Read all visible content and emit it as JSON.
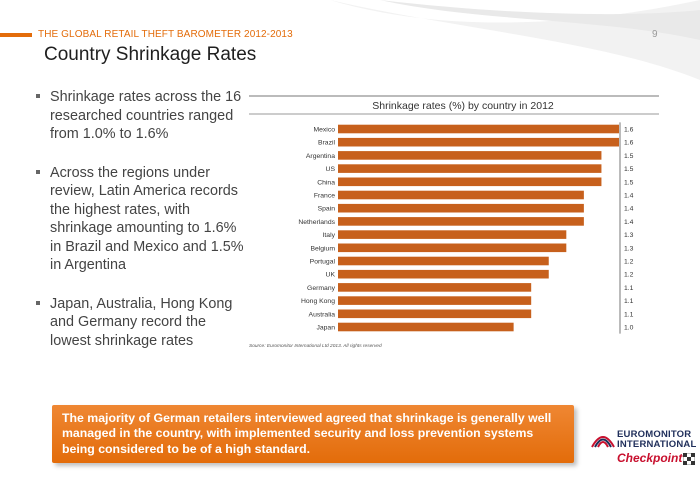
{
  "header": {
    "title": "THE GLOBAL RETAIL THEFT BAROMETER 2012-2013",
    "page_number": "9",
    "accent_color": "#e36c0a"
  },
  "slide": {
    "title": "Country Shrinkage Rates",
    "bullets": [
      "Shrinkage rates across the 16 researched countries ranged from 1.0% to 1.6%",
      "Across the regions under review, Latin America records the highest rates, with shrinkage amounting to 1.6% in Brazil and Mexico and 1.5% in Argentina",
      "Japan, Australia, Hong Kong and Germany record the lowest shrinkage rates"
    ],
    "callout": "The majority of German retailers interviewed agreed that shrinkage is generally well managed in the country, with implemented security and loss prevention systems being considered to be of a high standard."
  },
  "logos": {
    "euromonitor_line1": "EUROMONITOR",
    "euromonitor_line2": "INTERNATIONAL",
    "checkpoint": "Checkpoint"
  },
  "chart_data": {
    "type": "bar",
    "orientation": "horizontal",
    "title": "Shrinkage rates (%) by country in 2012",
    "source": "Source: Euromonitor International Ltd 2013. All rights reserved",
    "categories": [
      "Mexico",
      "Brazil",
      "Argentina",
      "US",
      "China",
      "France",
      "Spain",
      "Netherlands",
      "Italy",
      "Belgium",
      "Portugal",
      "UK",
      "Germany",
      "Hong Kong",
      "Australia",
      "Japan"
    ],
    "values": [
      1.6,
      1.6,
      1.5,
      1.5,
      1.5,
      1.4,
      1.4,
      1.4,
      1.3,
      1.3,
      1.2,
      1.2,
      1.1,
      1.1,
      1.1,
      1.0
    ],
    "value_labels": [
      "1.6",
      "1.6",
      "1.5",
      "1.5",
      "1.5",
      "1.4",
      "1.4",
      "1.4",
      "1.3",
      "1.3",
      "1.2",
      "1.2",
      "1.1",
      "1.1",
      "1.1",
      "1.0"
    ],
    "bar_color": "#c7601c",
    "grid": false,
    "legend": "none"
  }
}
